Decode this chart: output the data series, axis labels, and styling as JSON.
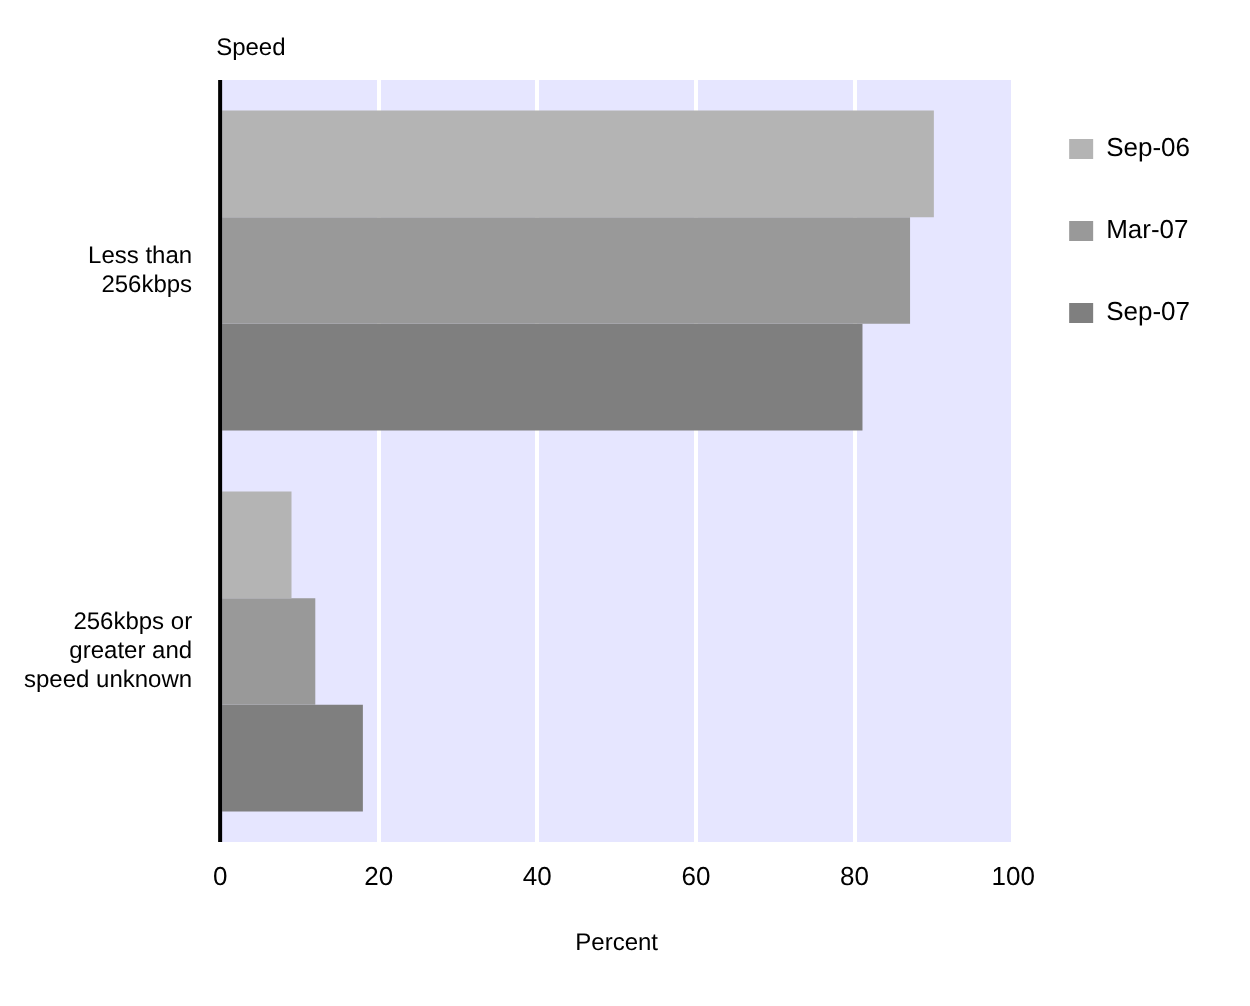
{
  "chart_data": {
    "type": "bar",
    "orientation": "horizontal",
    "ylabel": "Speed",
    "xlabel": "Percent",
    "categories": [
      "Less than 256kbps",
      "256kbps or greater and speed unknown"
    ],
    "series": [
      {
        "name": "Sep-06",
        "color": "#b4b4b4",
        "values": [
          90,
          9
        ]
      },
      {
        "name": "Mar-07",
        "color": "#999999",
        "values": [
          87,
          12
        ]
      },
      {
        "name": "Sep-07",
        "color": "#7f7f7f",
        "values": [
          81,
          18
        ]
      }
    ],
    "xlim": [
      0,
      100
    ],
    "xticks": [
      0,
      20,
      40,
      60,
      80,
      100
    ],
    "grid": "x",
    "legend": "right"
  }
}
